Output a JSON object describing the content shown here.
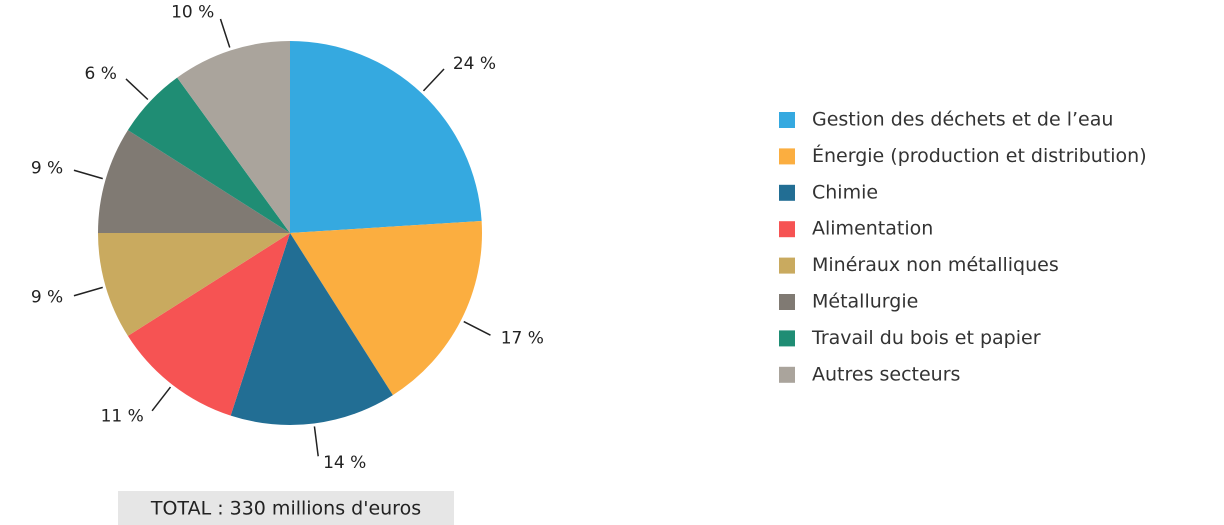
{
  "chart_data": {
    "type": "pie",
    "categories": [
      "Gestion des déchets et de l’eau",
      "Énergie (production et distribution)",
      "Chimie",
      "Alimentation",
      "Minéraux non métalliques",
      "Métallurgie",
      "Travail du bois et papier",
      "Autres secteurs"
    ],
    "values": [
      24,
      17,
      14,
      11,
      9,
      9,
      6,
      10
    ],
    "value_labels": [
      "24 %",
      "17 %",
      "14 %",
      "11 %",
      "9 %",
      "9 %",
      "6 %",
      "10 %"
    ],
    "colors": [
      "#35a9e0",
      "#fbae40",
      "#226e94",
      "#f65353",
      "#c9aa5f",
      "#807a73",
      "#1f8d74",
      "#aaa49c"
    ],
    "legend": "right",
    "annotation": "TOTAL : 330 millions d'euros"
  }
}
